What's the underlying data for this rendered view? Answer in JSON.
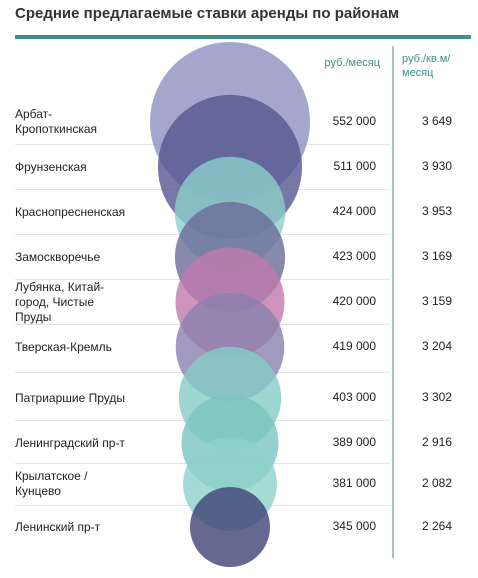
{
  "chart_data": {
    "type": "bubble",
    "title": "Средние предлагаемые ставки аренды по районам",
    "categories": [
      "Арбат-Кропоткинская",
      "Фрунзенская",
      "Краснопресненская",
      "Замоскворечье",
      "Лубянка, Китай-город, Чистые Пруды",
      "Тверская-Кремль",
      "Патриаршие Пруды",
      "Ленинградский пр-т",
      "Крылатское / Кунцево",
      "Ленинский пр-т"
    ],
    "series": [
      {
        "name": "руб./месяц",
        "values": [
          552000,
          511000,
          424000,
          423000,
          420000,
          419000,
          403000,
          389000,
          381000,
          345000
        ],
        "value_labels": [
          "552 000",
          "511 000",
          "424 000",
          "423 000",
          "420 000",
          "419 000",
          "403 000",
          "389 000",
          "381 000",
          "345 000"
        ]
      },
      {
        "name": "руб./кв.м/ месяц",
        "values": [
          3649,
          3930,
          3953,
          3169,
          3159,
          3204,
          3302,
          2916,
          2082,
          2264
        ],
        "value_labels": [
          "3 649",
          "3 930",
          "3 953",
          "3 169",
          "3 159",
          "3 204",
          "3 302",
          "2 916",
          "2 082",
          "2 264"
        ]
      }
    ],
    "colors": [
      "#8f90c2",
      "#55568f",
      "#8ccfca",
      "#6b6a98",
      "#c07aad",
      "#8a7fae",
      "#86cdc7",
      "#7cc4bf",
      "#8ed1cc",
      "#3f4275"
    ]
  }
}
